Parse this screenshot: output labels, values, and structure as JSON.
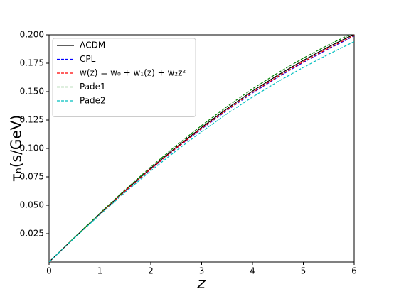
{
  "chart_data": {
    "type": "line",
    "x_label": "z",
    "y_label": "τₙ(s/GeV)",
    "x": [
      0,
      0.5,
      1,
      1.5,
      2,
      2.5,
      3,
      3.5,
      4,
      4.5,
      5,
      5.5,
      6
    ],
    "series": [
      {
        "name": "ΛCDM",
        "color": "#000000",
        "linestyle": "solid",
        "values": [
          0,
          0.0215,
          0.0425,
          0.063,
          0.0825,
          0.101,
          0.1185,
          0.135,
          0.1505,
          0.1645,
          0.1775,
          0.1895,
          0.2005
        ]
      },
      {
        "name": "CPL",
        "color": "#0000ff",
        "linestyle": "dashed",
        "values": [
          0,
          0.0214,
          0.0422,
          0.0625,
          0.0818,
          0.1,
          0.1172,
          0.1335,
          0.1488,
          0.1627,
          0.1757,
          0.1877,
          0.199
        ]
      },
      {
        "name": "w(z) = w₀ + w₁(z) + w₂z²",
        "color": "#ff0000",
        "linestyle": "dashed",
        "values": [
          0,
          0.0214,
          0.0423,
          0.0627,
          0.082,
          0.1003,
          0.1176,
          0.134,
          0.1493,
          0.1633,
          0.1763,
          0.1883,
          0.1995
        ]
      },
      {
        "name": "Pade1",
        "color": "#008000",
        "linestyle": "dashed",
        "values": [
          0,
          0.0217,
          0.043,
          0.0638,
          0.0837,
          0.1025,
          0.1202,
          0.1368,
          0.1524,
          0.1665,
          0.1795,
          0.1913,
          0.202
        ]
      },
      {
        "name": "Pade2",
        "color": "#00bfbf",
        "linestyle": "dashed",
        "values": [
          0,
          0.0212,
          0.0417,
          0.0615,
          0.0803,
          0.098,
          0.1148,
          0.1305,
          0.1452,
          0.1588,
          0.1713,
          0.183,
          0.194
        ]
      }
    ],
    "xlim": [
      0,
      6
    ],
    "xticks": [
      0,
      1,
      2,
      3,
      4,
      5,
      6
    ],
    "ylim": [
      0,
      0.2
    ],
    "yticks": [
      0.025,
      {
        "value": 0.05,
        "label": "0.050"
      },
      0.075,
      {
        "value": 0.1,
        "label": "0.100"
      },
      0.125,
      {
        "value": 0.15,
        "label": "0.150"
      },
      0.175,
      {
        "value": 0.2,
        "label": "0.200"
      }
    ],
    "legend": "upper left",
    "grid": false
  }
}
